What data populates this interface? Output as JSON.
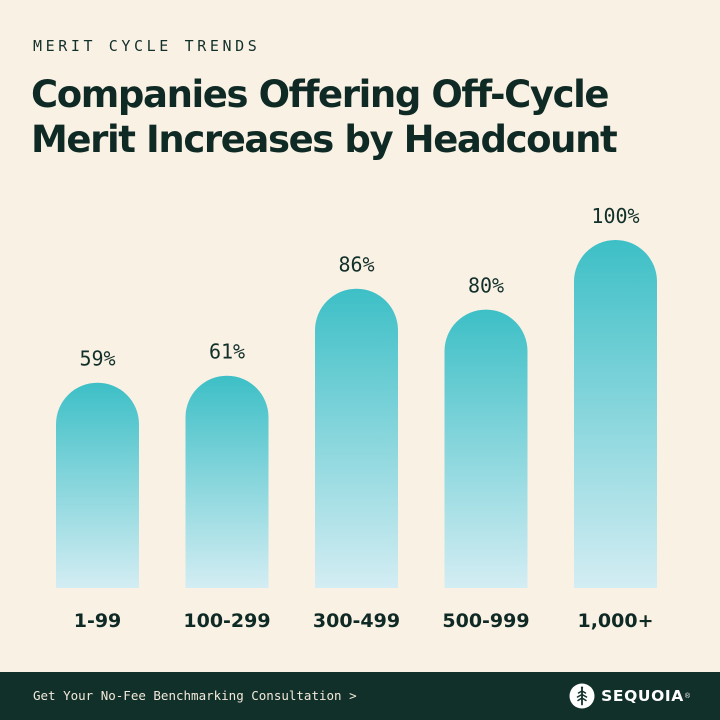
{
  "header": {
    "eyebrow": "MERIT CYCLE TRENDS",
    "title": "Companies Offering Off-Cycle Merit Increases by Headcount"
  },
  "chart_data": {
    "type": "bar",
    "categories": [
      "1-99",
      "100-299",
      "300-499",
      "500-999",
      "1,000+"
    ],
    "values": [
      59,
      61,
      86,
      80,
      100
    ],
    "value_labels": [
      "59%",
      "61%",
      "86%",
      "80%",
      "100%"
    ],
    "title": "Companies Offering Off-Cycle Merit Increases by Headcount",
    "ylim": [
      0,
      100
    ],
    "grid": false,
    "legend": "none",
    "bar_gradient": {
      "top": "#3DBFC6",
      "bottom": "#D3EDF3"
    }
  },
  "footer": {
    "cta": "Get Your No-Fee Benchmarking Consultation >",
    "brand": "SEQUOIA",
    "brand_mark": "®",
    "logo_icon": "sequoia-tree-icon",
    "background": "#11302A"
  }
}
